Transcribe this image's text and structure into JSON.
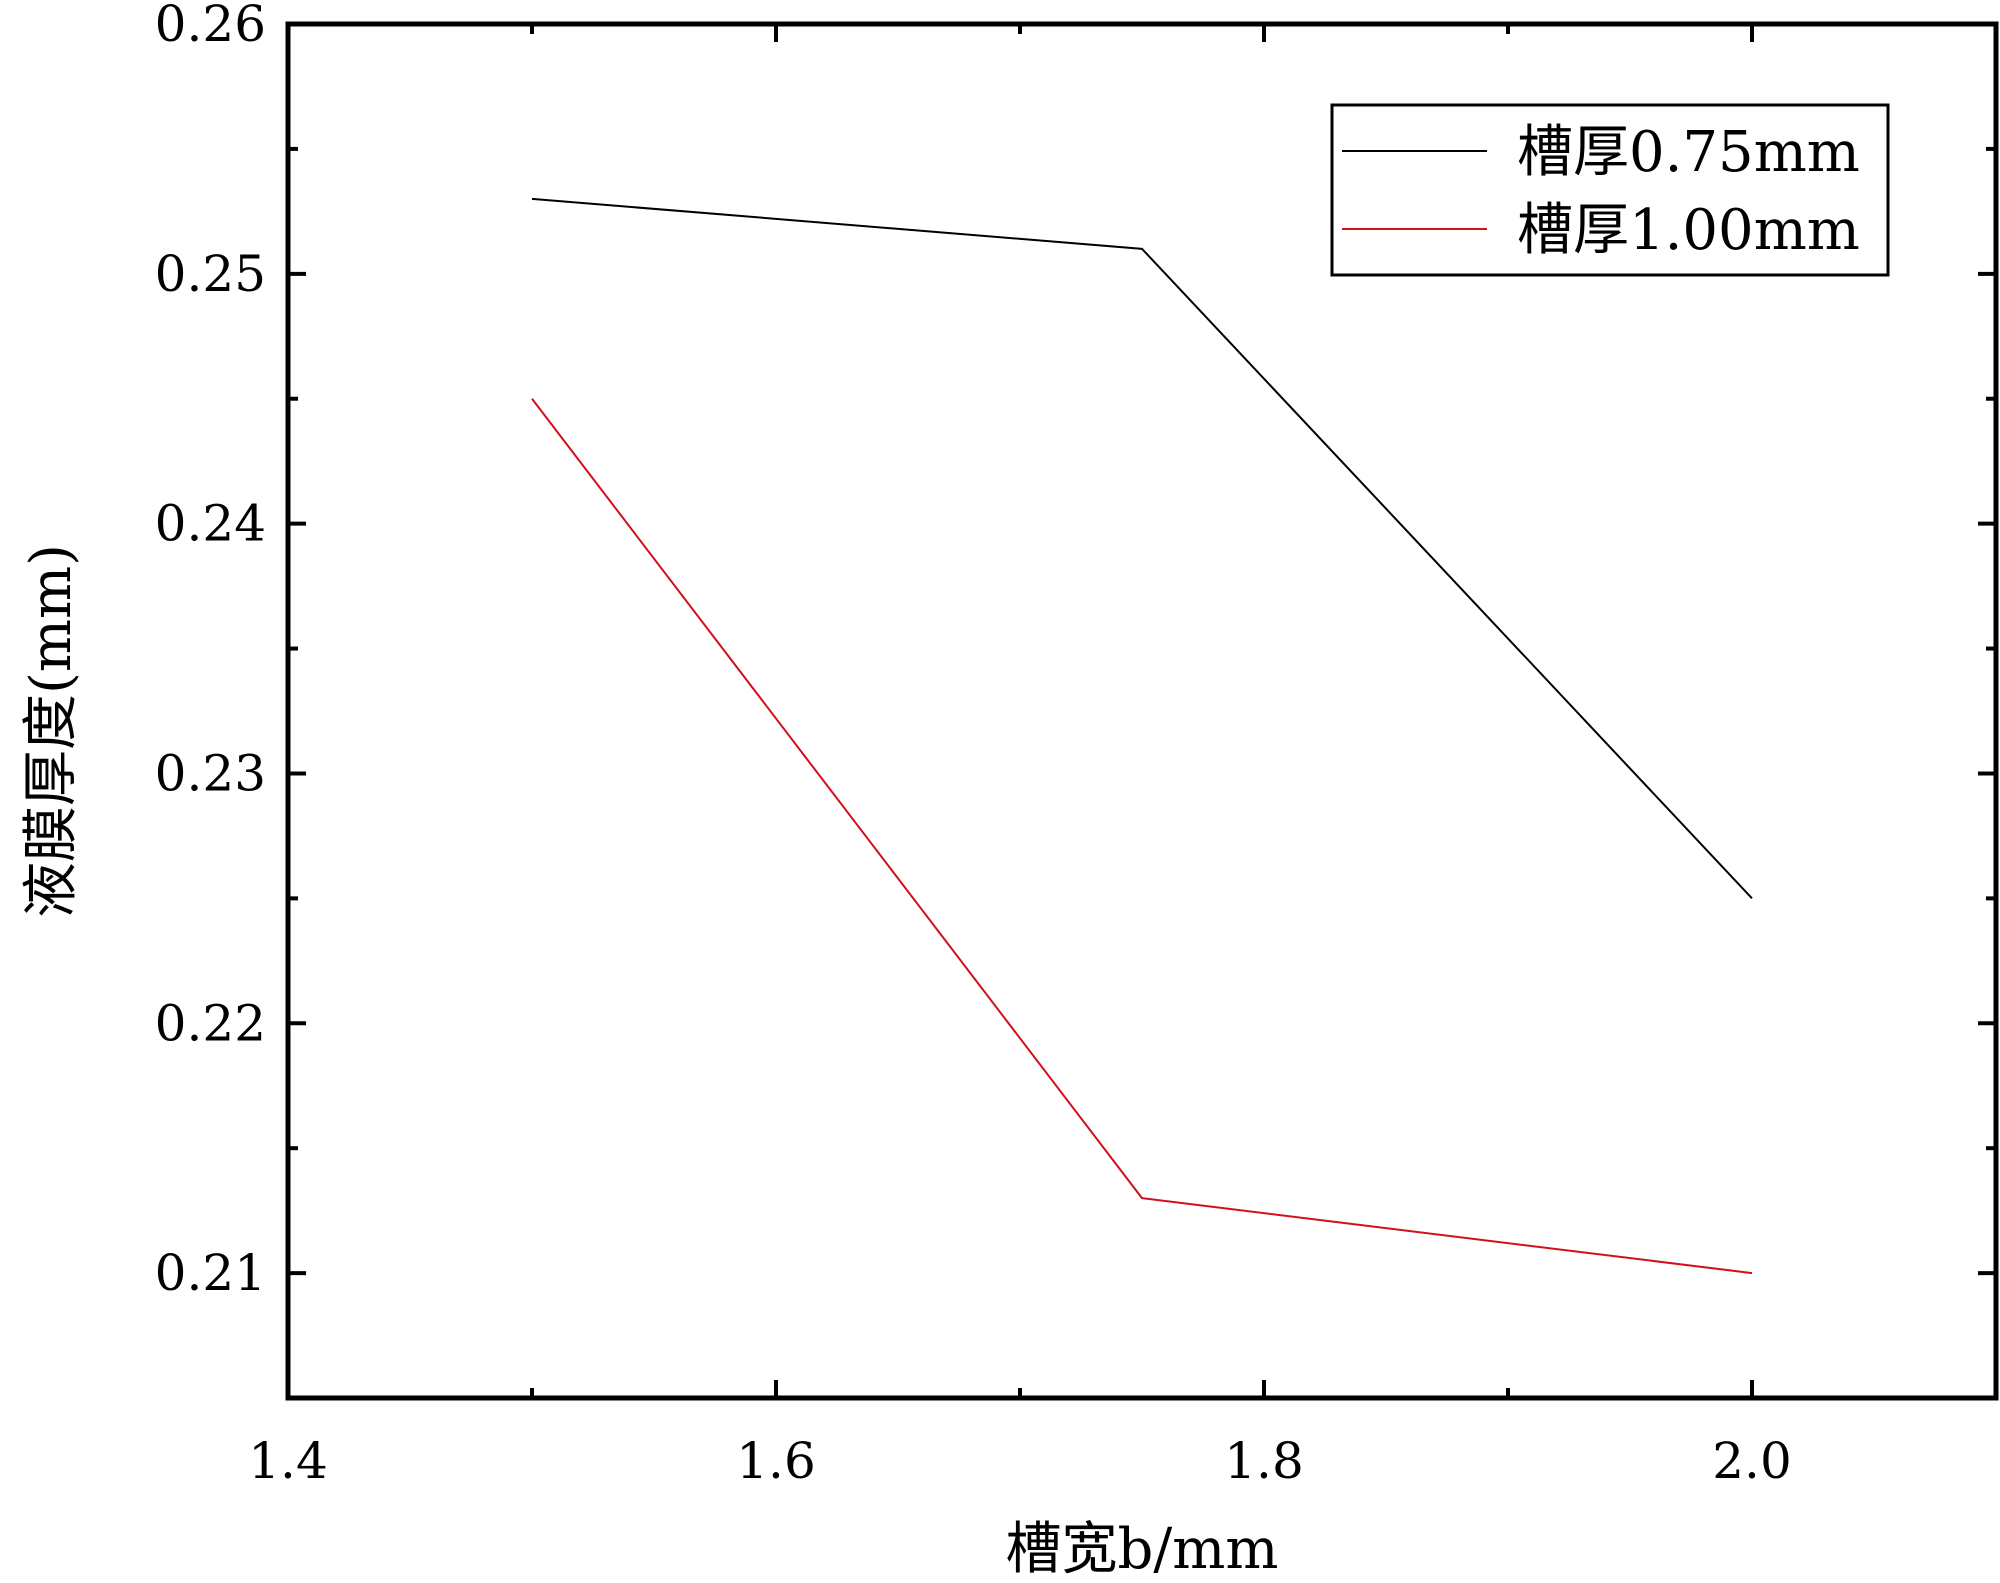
{
  "chart_data": {
    "type": "line",
    "title": "",
    "xlabel": "槽宽b/mm",
    "ylabel": "液膜厚度(mm)",
    "xlim": [
      1.4,
      2.1
    ],
    "ylim": [
      0.205,
      0.26
    ],
    "x_ticks": [
      1.4,
      1.6,
      1.8,
      2.0
    ],
    "x_tick_labels": [
      "1.4",
      "1.6",
      "1.8",
      "2.0"
    ],
    "y_ticks": [
      0.21,
      0.22,
      0.23,
      0.24,
      0.25,
      0.26
    ],
    "y_tick_labels": [
      "0.21",
      "0.22",
      "0.23",
      "0.24",
      "0.25",
      "0.26"
    ],
    "grid": false,
    "legend_position": "top-right",
    "series": [
      {
        "name": "槽厚0.75mm",
        "color": "#000000",
        "x": [
          1.5,
          1.75,
          2.0
        ],
        "y": [
          0.253,
          0.251,
          0.225
        ]
      },
      {
        "name": "槽厚1.00mm",
        "color": "#d0101a",
        "x": [
          1.5,
          1.75,
          2.0
        ],
        "y": [
          0.245,
          0.213,
          0.21
        ]
      }
    ]
  }
}
